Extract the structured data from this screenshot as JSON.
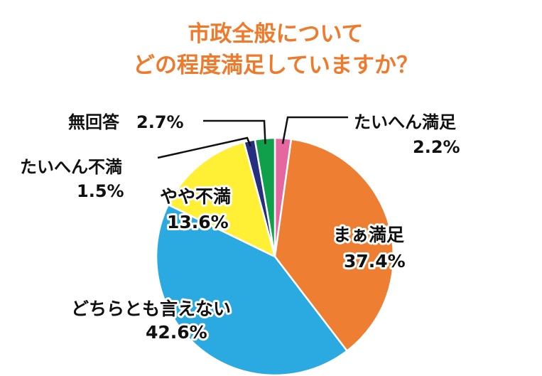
{
  "chart_data": {
    "type": "pie",
    "title": "市政全般について",
    "subtitle": "どの程度満足していますか？",
    "slices": [
      {
        "label": "たいへん満足",
        "value_label": "2.2%",
        "value": 2.2,
        "color": "#e4679f"
      },
      {
        "label": "まぁ満足",
        "value_label": "37.4%",
        "value": 37.4,
        "color": "#ee7e32"
      },
      {
        "label": "どちらとも言えない",
        "value_label": "42.6%",
        "value": 42.6,
        "color": "#2ba9e1"
      },
      {
        "label": "やや不満",
        "value_label": "13.6%",
        "value": 13.6,
        "color": "#fff035"
      },
      {
        "label": "たいへん不満",
        "value_label": "1.5%",
        "value": 1.5,
        "color": "#262e80"
      },
      {
        "label": "無回答",
        "value_label": "2.7%",
        "value": 2.7,
        "color": "#109f4a"
      }
    ],
    "start_angle": "12 o'clock",
    "direction": "clockwise",
    "legend": "none"
  }
}
